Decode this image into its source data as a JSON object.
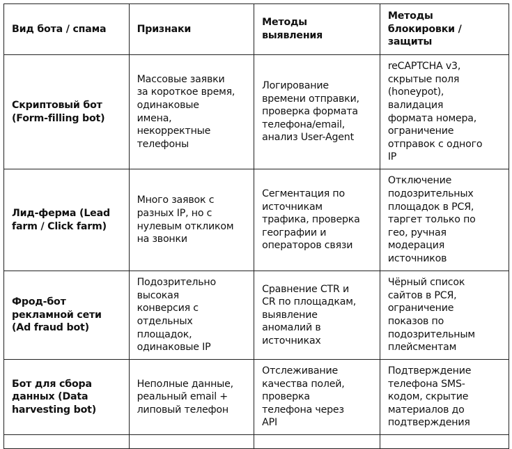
{
  "table": {
    "headers": [
      [
        "Вид бота / спама"
      ],
      [
        "Признаки"
      ],
      [
        "Методы",
        "выявления"
      ],
      [
        "Методы",
        "блокировки /",
        "защиты"
      ]
    ],
    "rows": [
      [
        [
          "Скриптовый бот",
          "(Form-filling bot)"
        ],
        [
          "Массовые заявки",
          "за короткое время,",
          "одинаковые",
          "имена,",
          "некорректные",
          "телефоны"
        ],
        [
          "Логирование",
          "времени отправки,",
          "проверка формата",
          "телефона/email,",
          "анализ User-Agent"
        ],
        [
          "reCAPTCHA v3,",
          "скрытые поля",
          "(honeypot),",
          "валидация",
          "формата номера,",
          "ограничение",
          "отправок с одного",
          "IP"
        ]
      ],
      [
        [
          "Лид-ферма (Lead",
          "farm / Click farm)"
        ],
        [
          "Много заявок с",
          "разных IP, но с",
          "нулевым откликом",
          "на звонки"
        ],
        [
          "Сегментация по",
          "источникам",
          "трафика, проверка",
          "географии и",
          "операторов связи"
        ],
        [
          "Отключение",
          "подозрительных",
          "площадок в РСЯ,",
          "таргет только по",
          "гео, ручная",
          "модерация",
          "источников"
        ]
      ],
      [
        [
          "Фрод-бот",
          "рекламной сети",
          "(Ad fraud bot)"
        ],
        [
          "Подозрительно",
          "высокая",
          "конверсия с",
          "отдельных",
          "площадок,",
          "одинаковые IP"
        ],
        [
          "Сравнение CTR и",
          "CR по площадкам,",
          "выявление",
          "аномалий в",
          "источниках"
        ],
        [
          "Чёрный список",
          "сайтов в РСЯ,",
          "ограничение",
          "показов по",
          "подозрительным",
          "плейсментам"
        ]
      ],
      [
        [
          "Бот для сбора",
          "данных (Data",
          "harvesting bot)"
        ],
        [
          "Неполные данные,",
          "реальный email +",
          "липовый телефон"
        ],
        [
          "Отслеживание",
          "качества полей,",
          "проверка",
          "телефона через",
          "API"
        ],
        [
          "Подтверждение",
          "телефона SMS-",
          "кодом, скрытие",
          "материалов до",
          "подтверждения"
        ]
      ]
    ]
  }
}
